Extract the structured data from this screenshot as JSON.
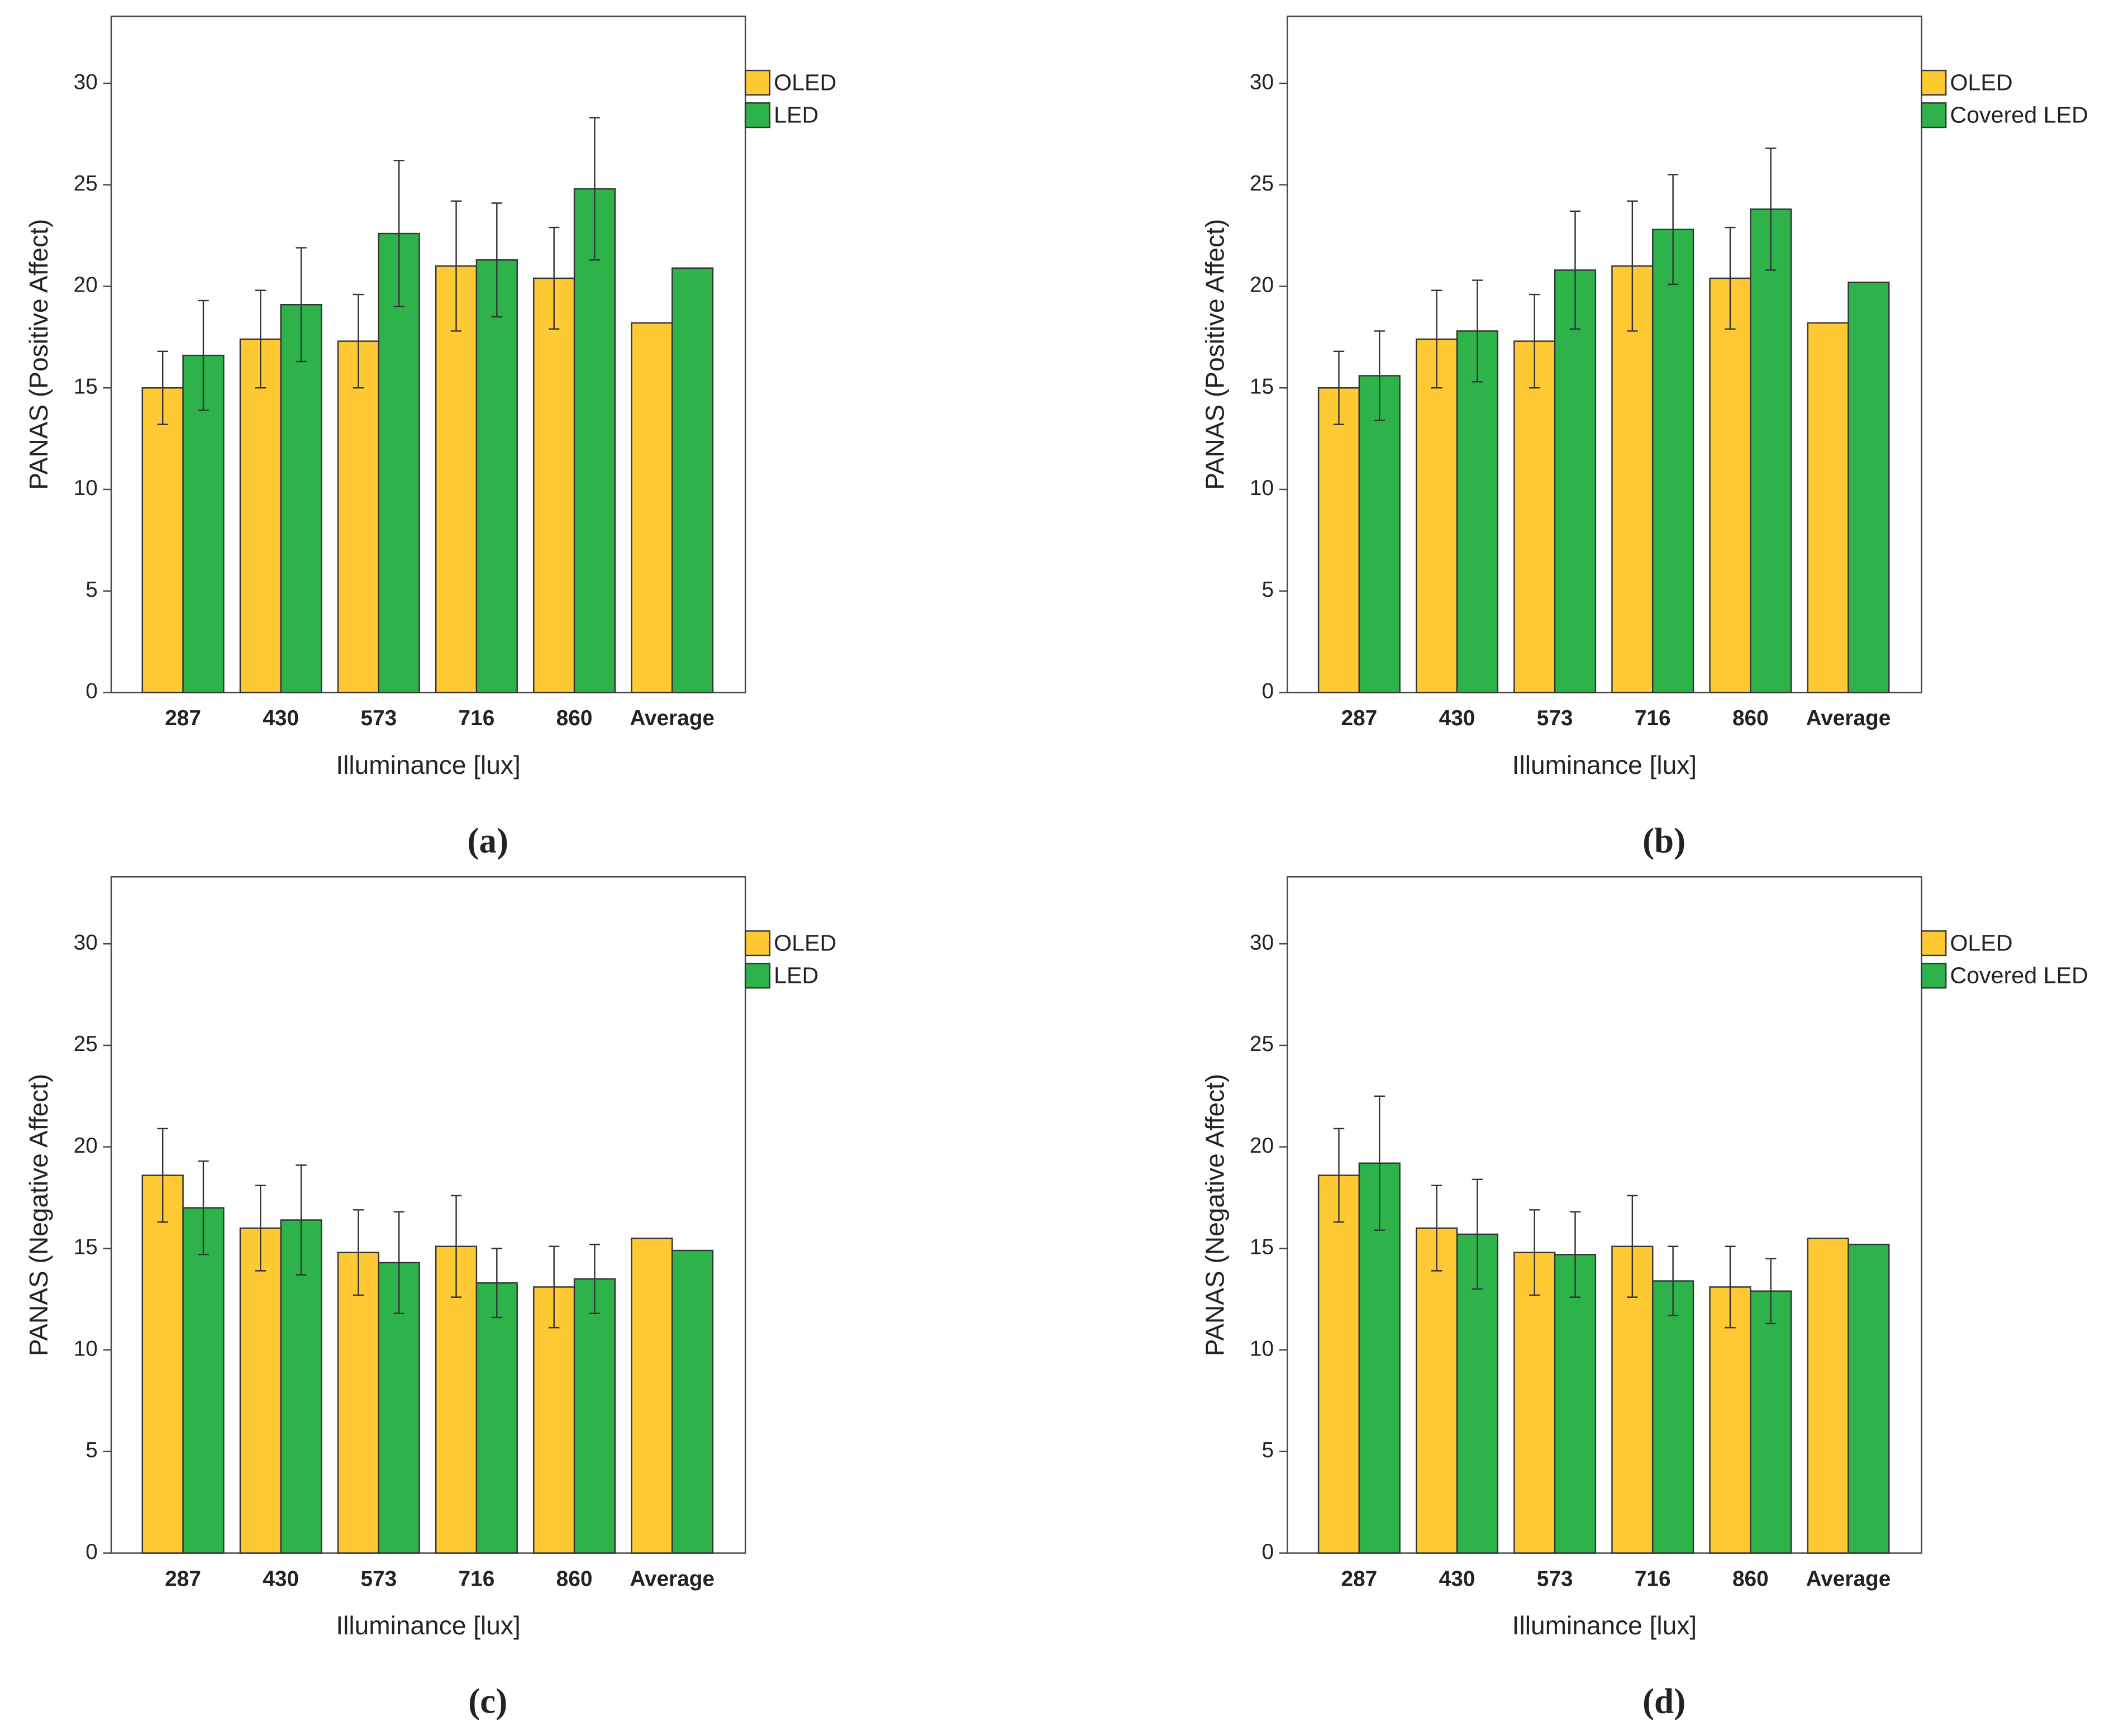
{
  "chart_data": [
    {
      "type": "bar",
      "label": "(a)",
      "ylabel": "PANAS (Positive Affect)",
      "xlabel": "Illuminance [lux]",
      "categories": [
        "287",
        "430",
        "573",
        "716",
        "860",
        "Average"
      ],
      "series": [
        {
          "name": "OLED",
          "color": "#ffc933",
          "values": [
            15.0,
            17.4,
            17.3,
            21.0,
            20.4,
            18.2
          ],
          "errors": [
            1.8,
            2.4,
            2.3,
            3.2,
            2.5,
            null
          ]
        },
        {
          "name": "LED",
          "color": "#2db34a",
          "values": [
            16.6,
            19.1,
            22.6,
            21.3,
            24.8,
            20.9
          ],
          "errors": [
            2.7,
            2.8,
            3.6,
            2.8,
            3.5,
            null
          ]
        }
      ],
      "ylim": [
        0,
        33.3
      ],
      "yticks": [
        0,
        5,
        10,
        15,
        20,
        25,
        30
      ],
      "legend": "right-top"
    },
    {
      "type": "bar",
      "label": "(b)",
      "ylabel": "PANAS (Positive Affect)",
      "xlabel": "Illuminance [lux]",
      "categories": [
        "287",
        "430",
        "573",
        "716",
        "860",
        "Average"
      ],
      "series": [
        {
          "name": "OLED",
          "color": "#ffc933",
          "values": [
            15.0,
            17.4,
            17.3,
            21.0,
            20.4,
            18.2
          ],
          "errors": [
            1.8,
            2.4,
            2.3,
            3.2,
            2.5,
            null
          ]
        },
        {
          "name": "Covered LED",
          "color": "#2db34a",
          "values": [
            15.6,
            17.8,
            20.8,
            22.8,
            23.8,
            20.2
          ],
          "errors": [
            2.2,
            2.5,
            2.9,
            2.7,
            3.0,
            null
          ]
        }
      ],
      "ylim": [
        0,
        33.3
      ],
      "yticks": [
        0,
        5,
        10,
        15,
        20,
        25,
        30
      ],
      "legend": "right-top"
    },
    {
      "type": "bar",
      "label": "(c)",
      "ylabel": "PANAS (Negative Affect)",
      "xlabel": "Illuminance [lux]",
      "categories": [
        "287",
        "430",
        "573",
        "716",
        "860",
        "Average"
      ],
      "series": [
        {
          "name": "OLED",
          "color": "#ffc933",
          "values": [
            18.6,
            16.0,
            14.8,
            15.1,
            13.1,
            15.5
          ],
          "errors": [
            2.3,
            2.1,
            2.1,
            2.5,
            2.0,
            null
          ]
        },
        {
          "name": "LED",
          "color": "#2db34a",
          "values": [
            17.0,
            16.4,
            14.3,
            13.3,
            13.5,
            14.9
          ],
          "errors": [
            2.3,
            2.7,
            2.5,
            1.7,
            1.7,
            null
          ]
        }
      ],
      "ylim": [
        0,
        33.3
      ],
      "yticks": [
        0,
        5,
        10,
        15,
        20,
        25,
        30
      ],
      "legend": "right-top"
    },
    {
      "type": "bar",
      "label": "(d)",
      "ylabel": "PANAS (Negative Affect)",
      "xlabel": "Illuminance [lux]",
      "categories": [
        "287",
        "430",
        "573",
        "716",
        "860",
        "Average"
      ],
      "series": [
        {
          "name": "OLED",
          "color": "#ffc933",
          "values": [
            18.6,
            16.0,
            14.8,
            15.1,
            13.1,
            15.5
          ],
          "errors": [
            2.3,
            2.1,
            2.1,
            2.5,
            2.0,
            null
          ]
        },
        {
          "name": "Covered LED",
          "color": "#2db34a",
          "values": [
            19.2,
            15.7,
            14.7,
            13.4,
            12.9,
            15.2
          ],
          "errors": [
            3.3,
            2.7,
            2.1,
            1.7,
            1.6,
            null
          ]
        }
      ],
      "ylim": [
        0,
        33.3
      ],
      "yticks": [
        0,
        5,
        10,
        15,
        20,
        25,
        30
      ],
      "legend": "right-top"
    }
  ]
}
